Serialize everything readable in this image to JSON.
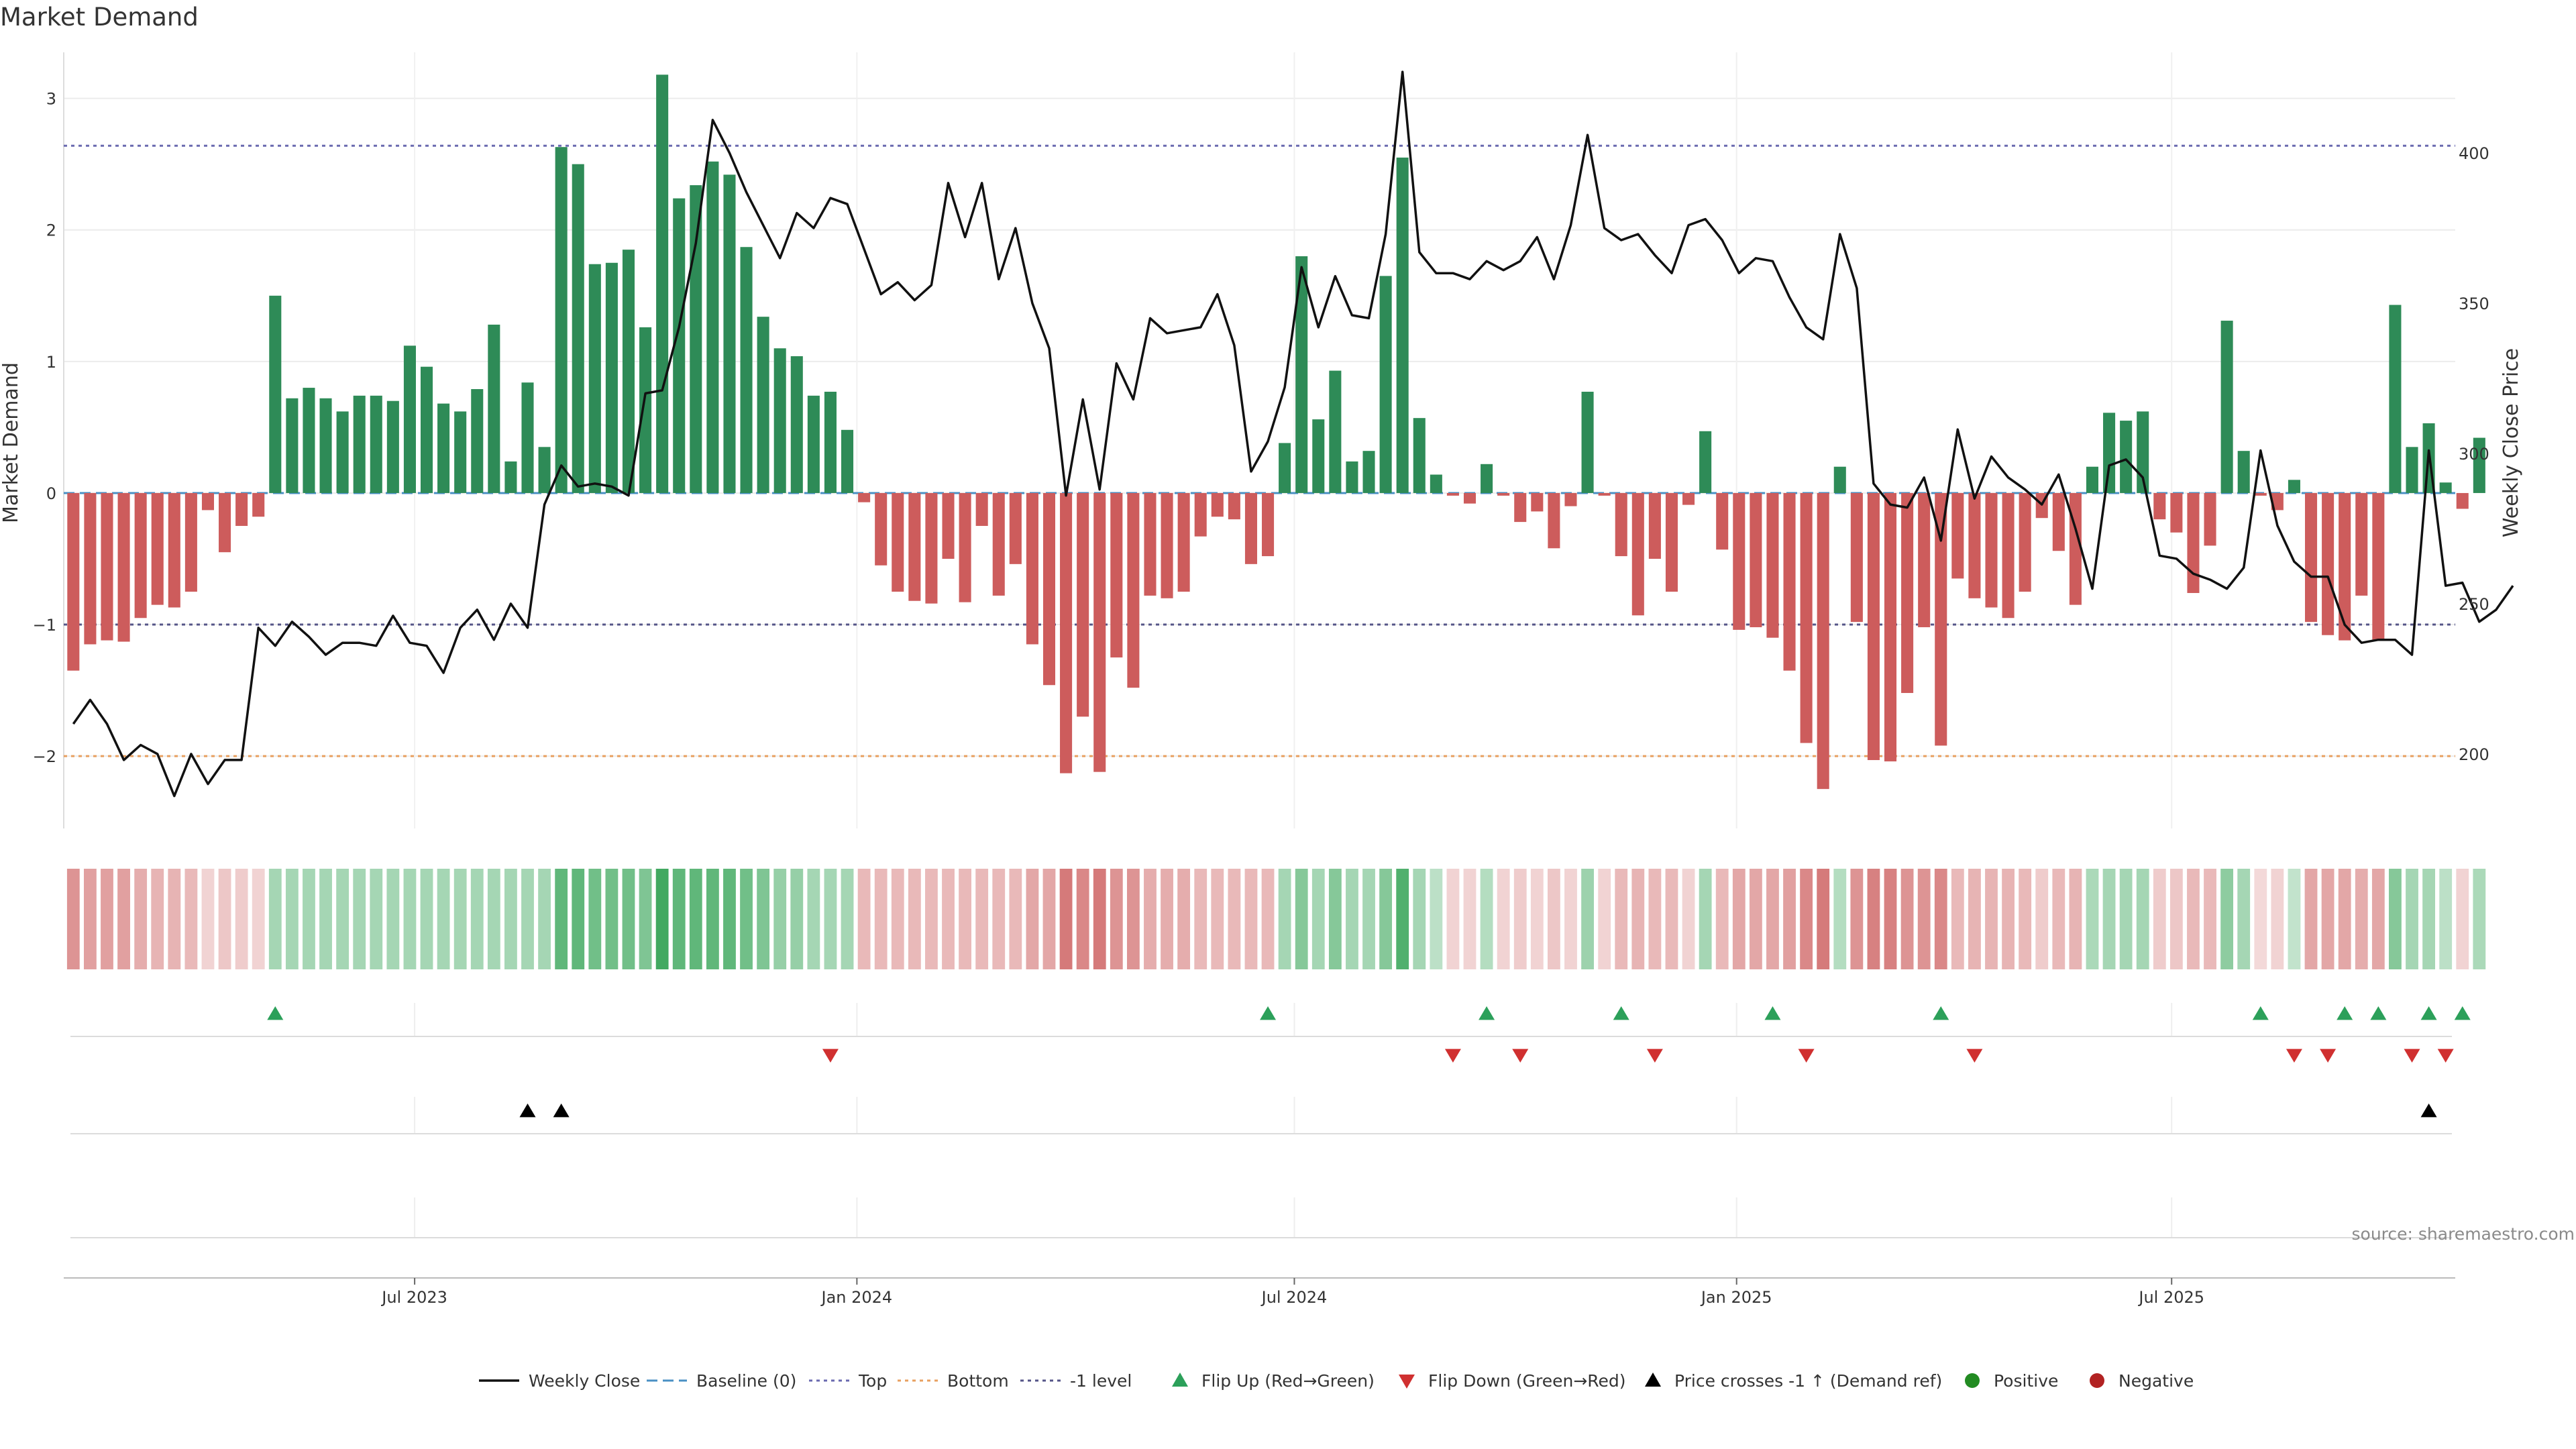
{
  "chart_data": {
    "type": "bar",
    "title": "Market Demand",
    "ylabel": "Market Demand",
    "y2label": "Weekly Close Price",
    "ylim": [
      -2.55,
      3.35
    ],
    "y2lim": [
      175.2,
      433.5
    ],
    "yticks": [
      -2,
      -1,
      0,
      1,
      2,
      3
    ],
    "y2ticks": [
      200,
      250,
      300,
      350,
      400
    ],
    "xlim": [
      "2023-02-05",
      "2025-10-27"
    ],
    "xticks": [
      {
        "date": "2023-07-01",
        "label": "Jul 2023"
      },
      {
        "date": "2024-01-01",
        "label": "Jan 2024"
      },
      {
        "date": "2024-07-01",
        "label": "Jul 2024"
      },
      {
        "date": "2025-01-01",
        "label": "Jan 2025"
      },
      {
        "date": "2025-07-01",
        "label": "Jul 2025"
      }
    ],
    "start_date": "2023-02-09",
    "reference_lines": {
      "baseline": 0,
      "top": 2.64,
      "bottom": -2.0,
      "minus_one": -1.0
    },
    "grid": true,
    "legend_position": "bottom-center",
    "colors": {
      "positive": "#2e8b57",
      "negative": "#cd5c5c",
      "price": "#111111",
      "baseline": "#4a90c4",
      "top": "#6a6ab0",
      "bottom": "#e8a060",
      "minus_one": "#555588",
      "flip_up": "#2ca05a",
      "flip_down": "#d03030",
      "cross": "#000000",
      "positive_dot": "#228b22",
      "negative_dot": "#b22222"
    },
    "demand": [
      -1.35,
      -1.15,
      -1.12,
      -1.13,
      -0.95,
      -0.85,
      -0.87,
      -0.75,
      -0.13,
      -0.45,
      -0.25,
      -0.18,
      1.5,
      0.72,
      0.8,
      0.72,
      0.62,
      0.74,
      0.74,
      0.7,
      1.12,
      0.96,
      0.68,
      0.62,
      0.79,
      1.28,
      0.24,
      0.84,
      0.35,
      2.63,
      2.5,
      1.74,
      1.75,
      1.85,
      1.26,
      3.18,
      2.24,
      2.34,
      2.52,
      2.42,
      1.87,
      1.34,
      1.1,
      1.04,
      0.74,
      0.77,
      0.48,
      -0.07,
      -0.55,
      -0.75,
      -0.82,
      -0.84,
      -0.5,
      -0.83,
      -0.25,
      -0.78,
      -0.54,
      -1.15,
      -1.46,
      -2.13,
      -1.7,
      -2.12,
      -1.25,
      -1.48,
      -0.78,
      -0.8,
      -0.75,
      -0.33,
      -0.18,
      -0.2,
      -0.54,
      -0.48,
      0.38,
      1.8,
      0.56,
      0.93,
      0.24,
      0.32,
      1.65,
      2.55,
      0.57,
      0.14,
      -0.02,
      -0.08,
      0.22,
      -0.02,
      -0.22,
      -0.14,
      -0.42,
      -0.1,
      0.77,
      -0.02,
      -0.48,
      -0.93,
      -0.5,
      -0.75,
      -0.09,
      0.47,
      -0.43,
      -1.04,
      -1.02,
      -1.1,
      -1.35,
      -1.9,
      -2.25,
      0.2,
      -0.98,
      -2.03,
      -2.04,
      -1.52,
      -1.02,
      -1.92,
      -0.65,
      -0.8,
      -0.87,
      -0.95,
      -0.75,
      -0.19,
      -0.44,
      -0.85,
      0.2,
      0.61,
      0.55,
      0.62,
      -0.2,
      -0.3,
      -0.76,
      -0.4,
      1.31,
      0.32,
      -0.02,
      -0.13,
      0.1,
      -0.98,
      -1.08,
      -1.12,
      -0.78,
      -1.12,
      1.43,
      0.35,
      0.53,
      0.08,
      -0.12,
      0.42
    ],
    "price": [
      210,
      218,
      210,
      198,
      203,
      200,
      186,
      200,
      190,
      198,
      198,
      242,
      236,
      244,
      239,
      233,
      237,
      237,
      236,
      246,
      237,
      236,
      227,
      242,
      248,
      238,
      250,
      242,
      283,
      296,
      289,
      290,
      289,
      286,
      320,
      321,
      342,
      370,
      411,
      400,
      387,
      376,
      365,
      380,
      375,
      385,
      383,
      368,
      353,
      357,
      351,
      356,
      390,
      372,
      390,
      358,
      375,
      350,
      335,
      286,
      318,
      288,
      330,
      318,
      345,
      340,
      341,
      342,
      353,
      336,
      294,
      304,
      322,
      362,
      342,
      359,
      346,
      345,
      373,
      427,
      367,
      360,
      360,
      358,
      364,
      361,
      364,
      372,
      358,
      376,
      406,
      375,
      371,
      373,
      366,
      360,
      376,
      378,
      371,
      360,
      365,
      364,
      352,
      342,
      338,
      373,
      355,
      290,
      283,
      282,
      292,
      271,
      308,
      285,
      299,
      292,
      288,
      283,
      293,
      275,
      255,
      296,
      298,
      292,
      266,
      265,
      260,
      258,
      255,
      262,
      301,
      276,
      264,
      259,
      259,
      243,
      237,
      238,
      238,
      233,
      301,
      256,
      257,
      244,
      248,
      256
    ],
    "bands": [
      -0.6,
      -0.5,
      -0.5,
      -0.5,
      -0.4,
      -0.35,
      -0.35,
      -0.3,
      -0.1,
      -0.2,
      -0.15,
      -0.1,
      0.35,
      0.35,
      0.35,
      0.35,
      0.35,
      0.35,
      0.35,
      0.35,
      0.35,
      0.35,
      0.35,
      0.35,
      0.35,
      0.35,
      0.35,
      0.35,
      0.35,
      0.8,
      0.8,
      0.7,
      0.7,
      0.7,
      0.6,
      1.0,
      0.8,
      0.8,
      0.8,
      0.8,
      0.7,
      0.6,
      0.45,
      0.45,
      0.35,
      0.35,
      0.35,
      -0.3,
      -0.3,
      -0.3,
      -0.3,
      -0.3,
      -0.3,
      -0.3,
      -0.3,
      -0.3,
      -0.3,
      -0.45,
      -0.45,
      -0.8,
      -0.7,
      -0.8,
      -0.6,
      -0.6,
      -0.4,
      -0.4,
      -0.4,
      -0.3,
      -0.3,
      -0.3,
      -0.3,
      -0.3,
      0.35,
      0.55,
      0.35,
      0.55,
      0.35,
      0.35,
      0.55,
      0.9,
      0.35,
      0.2,
      -0.1,
      -0.1,
      0.25,
      -0.1,
      -0.15,
      -0.1,
      -0.2,
      -0.1,
      0.4,
      -0.1,
      -0.3,
      -0.35,
      -0.3,
      -0.3,
      -0.1,
      0.35,
      -0.3,
      -0.45,
      -0.45,
      -0.45,
      -0.5,
      -0.7,
      -0.8,
      0.25,
      -0.6,
      -0.75,
      -0.75,
      -0.6,
      -0.6,
      -0.7,
      -0.3,
      -0.35,
      -0.35,
      -0.35,
      -0.3,
      -0.15,
      -0.3,
      -0.35,
      0.3,
      0.35,
      0.35,
      0.35,
      -0.15,
      -0.2,
      -0.3,
      -0.3,
      0.5,
      0.35,
      -0.05,
      -0.1,
      0.15,
      -0.45,
      -0.45,
      -0.45,
      -0.4,
      -0.45,
      0.55,
      0.35,
      0.35,
      0.2,
      -0.1,
      0.3
    ],
    "flip_up": [
      "2023-05-04",
      "2024-06-20",
      "2024-09-19",
      "2024-11-14",
      "2025-01-16",
      "2025-03-27",
      "2025-08-07",
      "2025-09-11",
      "2025-10-16",
      "2025-10-30",
      "2025-09-25"
    ],
    "flip_down": [
      "2023-12-21",
      "2024-09-05",
      "2024-10-03",
      "2024-11-28",
      "2025-01-30",
      "2025-04-10",
      "2025-08-21",
      "2025-09-04",
      "2025-10-09",
      "2025-10-23"
    ],
    "price_crosses": [
      "2023-08-17",
      "2023-08-31",
      "2025-10-16"
    ],
    "legend": [
      {
        "key": "weekly_close",
        "label": "Weekly Close"
      },
      {
        "key": "baseline",
        "label": "Baseline (0)"
      },
      {
        "key": "top",
        "label": "Top"
      },
      {
        "key": "bottom",
        "label": "Bottom"
      },
      {
        "key": "minus_one",
        "label": "-1 level"
      },
      {
        "key": "flip_up",
        "label": "Flip Up (Red→Green)"
      },
      {
        "key": "flip_down",
        "label": "Flip Down (Green→Red)"
      },
      {
        "key": "cross",
        "label": "Price crosses -1 ↑ (Demand ref)"
      },
      {
        "key": "positive",
        "label": "Positive"
      },
      {
        "key": "negative",
        "label": "Negative"
      }
    ],
    "source": "source: sharemaestro.com"
  }
}
